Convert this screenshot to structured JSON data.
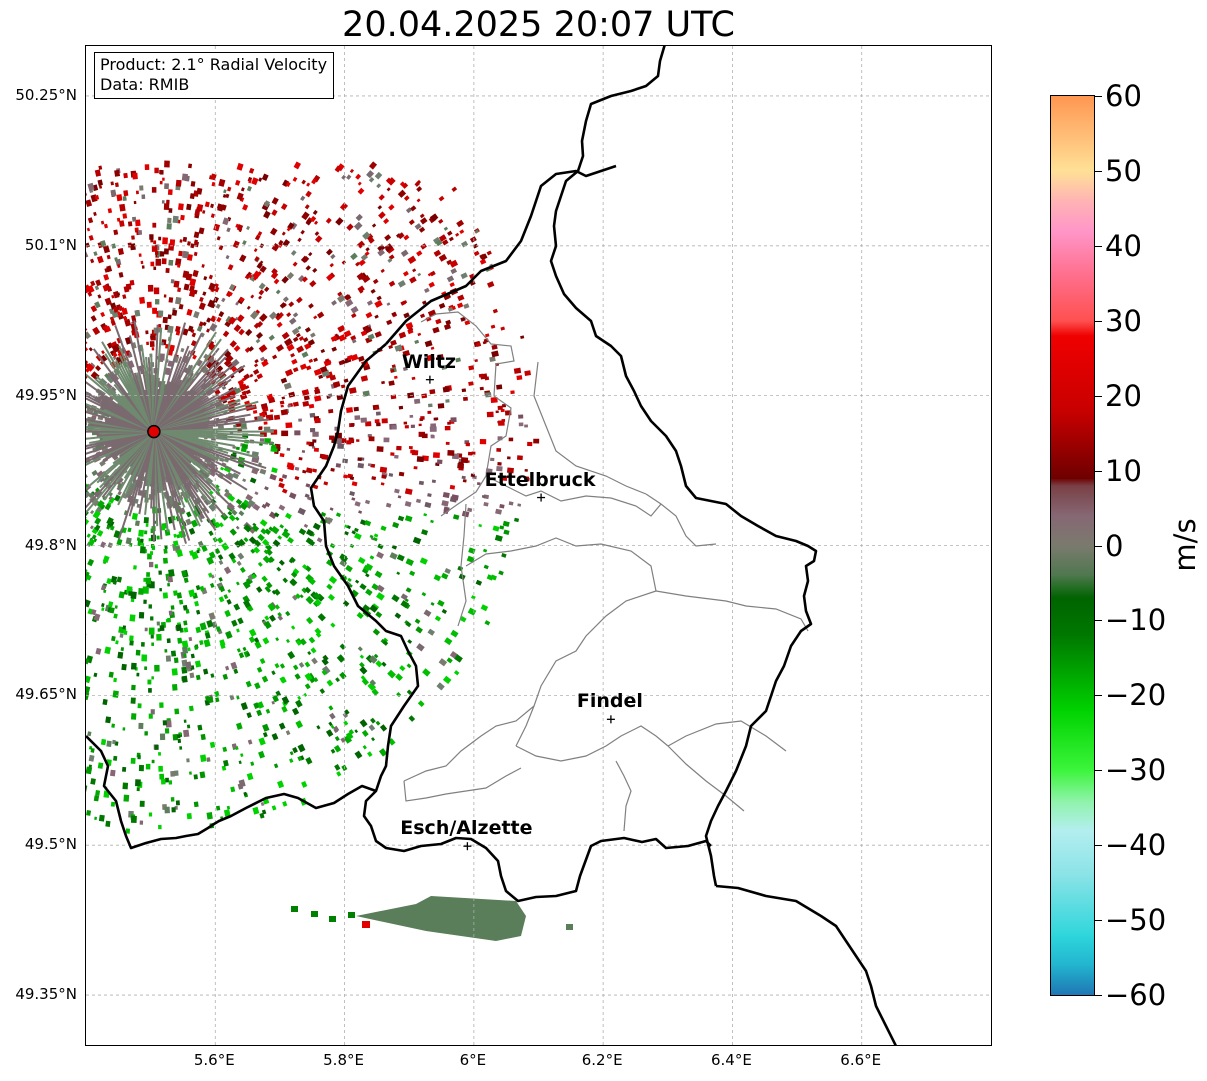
{
  "title": "20.04.2025 20:07 UTC",
  "info": {
    "product": "Product: 2.1° Radial Velocity",
    "data": "Data: RMIB"
  },
  "map": {
    "lon_range": [
      5.4,
      6.8
    ],
    "lat_range": [
      49.3,
      50.3
    ],
    "lat_ticks": [
      {
        "value": 50.25,
        "label": "50.25°N"
      },
      {
        "value": 50.1,
        "label": "50.1°N"
      },
      {
        "value": 49.95,
        "label": "49.95°N"
      },
      {
        "value": 49.8,
        "label": "49.8°N"
      },
      {
        "value": 49.65,
        "label": "49.65°N"
      },
      {
        "value": 49.5,
        "label": "49.5°N"
      },
      {
        "value": 49.35,
        "label": "49.35°N"
      }
    ],
    "lon_ticks": [
      {
        "value": 5.6,
        "label": "5.6°E"
      },
      {
        "value": 5.8,
        "label": "5.8°E"
      },
      {
        "value": 6.0,
        "label": "6°E"
      },
      {
        "value": 6.2,
        "label": "6.2°E"
      },
      {
        "value": 6.4,
        "label": "6.4°E"
      },
      {
        "value": 6.6,
        "label": "6.6°E"
      }
    ],
    "gridlines": true,
    "radar_site": {
      "lon": 5.505,
      "lat": 49.914,
      "color": "#e00000"
    },
    "cities": [
      {
        "name": "Wiltz",
        "lon": 5.932,
        "lat": 49.966
      },
      {
        "name": "Ettelbruck",
        "lon": 6.104,
        "lat": 49.848
      },
      {
        "name": "Findel",
        "lon": 6.212,
        "lat": 49.626
      },
      {
        "name": "Esch/Alzette",
        "lon": 5.99,
        "lat": 49.499
      }
    ]
  },
  "colorbar": {
    "unit": "m/s",
    "min": -60,
    "max": 60,
    "tick_labels": [
      {
        "value": 60,
        "label": "60"
      },
      {
        "value": 50,
        "label": "50"
      },
      {
        "value": 40,
        "label": "40"
      },
      {
        "value": 30,
        "label": "30"
      },
      {
        "value": 20,
        "label": "20"
      },
      {
        "value": 10,
        "label": "10"
      },
      {
        "value": 0,
        "label": "0"
      },
      {
        "value": -10,
        "label": "−10"
      },
      {
        "value": -20,
        "label": "−20"
      },
      {
        "value": -30,
        "label": "−30"
      },
      {
        "value": -40,
        "label": "−40"
      },
      {
        "value": -50,
        "label": "−50"
      },
      {
        "value": -60,
        "label": "−60"
      }
    ],
    "stops": [
      {
        "value": -60,
        "color": "#1f77b4"
      },
      {
        "value": -56,
        "color": "#22b4cf"
      },
      {
        "value": -52,
        "color": "#2ed6dc"
      },
      {
        "value": -44,
        "color": "#8ae3e6"
      },
      {
        "value": -38,
        "color": "#b4eef0"
      },
      {
        "value": -34,
        "color": "#8ef3a8"
      },
      {
        "value": -30,
        "color": "#3cf53c"
      },
      {
        "value": -22,
        "color": "#00d200"
      },
      {
        "value": -12,
        "color": "#007800"
      },
      {
        "value": -7,
        "color": "#006400"
      },
      {
        "value": -4,
        "color": "#4e784e"
      },
      {
        "value": 0,
        "color": "#7a7a6e"
      },
      {
        "value": 4,
        "color": "#866874"
      },
      {
        "value": 8,
        "color": "#7a4046"
      },
      {
        "value": 9,
        "color": "#6e0000"
      },
      {
        "value": 18,
        "color": "#c80000"
      },
      {
        "value": 28,
        "color": "#f00000"
      },
      {
        "value": 30,
        "color": "#ff5050"
      },
      {
        "value": 36,
        "color": "#ff6e8c"
      },
      {
        "value": 42,
        "color": "#ff96c8"
      },
      {
        "value": 46,
        "color": "#ffb4b4"
      },
      {
        "value": 50,
        "color": "#ffe096"
      },
      {
        "value": 56,
        "color": "#ffb46e"
      },
      {
        "value": 60,
        "color": "#ff9650"
      }
    ]
  }
}
